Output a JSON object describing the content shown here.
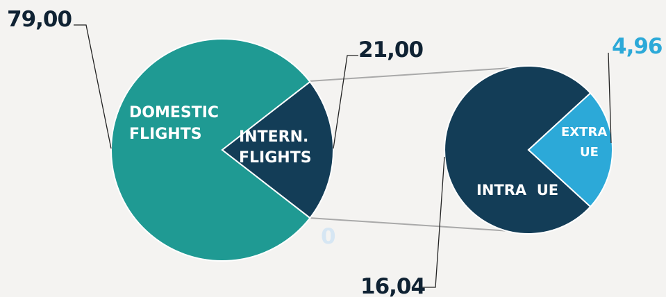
{
  "colors": {
    "background": "#f4f3f1",
    "domestic": "#1f9a93",
    "international": "#133d57",
    "intra_ue": "#133d57",
    "extra_ue": "#2ca9d8",
    "connector": "#a9a9a9",
    "leader": "#222222",
    "dark_text": "#0f2233",
    "blue_text": "#2ca9d8",
    "faint_text": "#d6e6f3"
  },
  "chart_data": [
    {
      "type": "pie",
      "labels": [
        "DOMESTIC FLIGHTS",
        "INTERN. FLIGHTS"
      ],
      "values": [
        79.0,
        21.0
      ],
      "value_labels": [
        "79,00",
        "21,00"
      ]
    },
    {
      "type": "pie",
      "labels": [
        "INTRA  UE",
        "EXTRA UE"
      ],
      "values": [
        16.04,
        4.96
      ],
      "value_labels": [
        "16,04",
        "4,96"
      ],
      "extra_label": "0"
    }
  ],
  "labels": {
    "domestic_line1": "DOMESTIC",
    "domestic_line2": "FLIGHTS",
    "intern_line1": "INTERN.",
    "intern_line2": "FLIGHTS",
    "intra": "INTRA  UE",
    "extra_line1": "EXTRA",
    "extra_line2": "UE"
  }
}
